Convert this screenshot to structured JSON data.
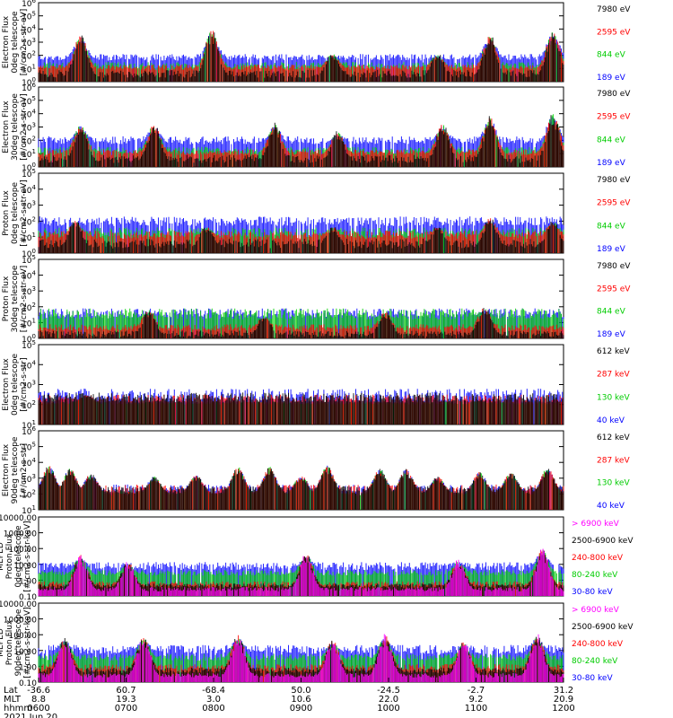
{
  "chart_data": [
    {
      "type": "line",
      "panel": "ted-electron-0deg",
      "ylabel": [
        "TED",
        "Electron Flux",
        "0deg telescope",
        "[#/cm2-s-str-eV]"
      ],
      "yscale": "log",
      "ylim": [
        1,
        1000000
      ],
      "yticks": [
        "10^0",
        "10^1",
        "10^2",
        "10^3",
        "10^4",
        "10^5",
        "10^6"
      ],
      "series": [
        {
          "name": "7980 eV",
          "color": "#000000",
          "level": [
            0.3,
            0.9
          ]
        },
        {
          "name": "2595 eV",
          "color": "#ff0000",
          "level": [
            0.9,
            1.3
          ]
        },
        {
          "name": "844 eV",
          "color": "#00cc00",
          "level": [
            1.0,
            1.5
          ]
        },
        {
          "name": "189 eV",
          "color": "#0000ff",
          "level": [
            1.6,
            2.1
          ]
        }
      ],
      "peaks": [
        [
          0.08,
          0.6,
          4.9
        ],
        [
          0.33,
          0.6,
          5.3
        ],
        [
          0.56,
          0.5,
          3.3
        ],
        [
          0.76,
          0.6,
          3.5
        ],
        [
          0.86,
          0.5,
          4.7
        ],
        [
          0.98,
          0.5,
          5.0
        ]
      ]
    },
    {
      "type": "line",
      "panel": "ted-electron-30deg",
      "ylabel": [
        "TED",
        "Electron Flux",
        "30deg telescope",
        "[#/cm2-s-str-eV]"
      ],
      "yscale": "log",
      "ylim": [
        1,
        1000000
      ],
      "yticks": [
        "10^0",
        "10^1",
        "10^2",
        "10^3",
        "10^4",
        "10^5",
        "10^6"
      ],
      "series": [
        {
          "name": "7980 eV",
          "color": "#000000",
          "level": [
            0.3,
            0.9
          ]
        },
        {
          "name": "2595 eV",
          "color": "#ff0000",
          "level": [
            0.9,
            1.3
          ]
        },
        {
          "name": "844 eV",
          "color": "#00cc00",
          "level": [
            1.0,
            1.5
          ]
        },
        {
          "name": "189 eV",
          "color": "#0000ff",
          "level": [
            1.7,
            2.3
          ]
        }
      ],
      "peaks": [
        [
          0.08,
          0.7,
          4.8
        ],
        [
          0.22,
          0.5,
          4.4
        ],
        [
          0.45,
          0.8,
          5.0
        ],
        [
          0.57,
          0.6,
          4.0
        ],
        [
          0.77,
          0.6,
          4.6
        ],
        [
          0.86,
          0.5,
          4.9
        ],
        [
          0.98,
          0.5,
          5.2
        ]
      ]
    },
    {
      "type": "line",
      "panel": "ted-proton-0deg",
      "ylabel": [
        "TED",
        "Proton Flux",
        "0deg telescope",
        "[#/cm2-s-str-eV]"
      ],
      "yscale": "log",
      "ylim": [
        1,
        100000
      ],
      "yticks": [
        "10^0",
        "10^1",
        "10^2",
        "10^3",
        "10^4",
        "10^5"
      ],
      "series": [
        {
          "name": "7980 eV",
          "color": "#000000",
          "level": [
            0.3,
            0.9
          ]
        },
        {
          "name": "2595 eV",
          "color": "#ff0000",
          "level": [
            0.9,
            1.4
          ]
        },
        {
          "name": "844 eV",
          "color": "#00cc00",
          "level": [
            1.0,
            1.6
          ]
        },
        {
          "name": "189 eV",
          "color": "#0000ff",
          "level": [
            1.7,
            2.3
          ]
        }
      ],
      "peaks": [
        [
          0.07,
          0.5,
          3.2
        ],
        [
          0.32,
          0.6,
          3.0
        ],
        [
          0.56,
          0.6,
          3.0
        ],
        [
          0.76,
          0.6,
          3.0
        ],
        [
          0.86,
          0.5,
          3.4
        ],
        [
          0.98,
          0.5,
          3.2
        ]
      ]
    },
    {
      "type": "line",
      "panel": "ted-proton-30deg",
      "ylabel": [
        "TED",
        "Proton Flux",
        "30deg telescope",
        "[#/cm2-s-str-eV]"
      ],
      "yscale": "log",
      "ylim": [
        1,
        100000
      ],
      "yticks": [
        "10^0",
        "10^1",
        "10^2",
        "10^3",
        "10^4",
        "10^5"
      ],
      "series": [
        {
          "name": "7980 eV",
          "color": "#000000",
          "level": [
            0.1,
            0.5
          ]
        },
        {
          "name": "2595 eV",
          "color": "#ff0000",
          "level": [
            0.5,
            0.9
          ]
        },
        {
          "name": "844 eV",
          "color": "#00cc00",
          "level": [
            1.2,
            1.9
          ]
        },
        {
          "name": "189 eV",
          "color": "#0000ff",
          "level": [
            1.3,
            1.9
          ]
        }
      ],
      "peaks": [
        [
          0.21,
          0.6,
          3.1
        ],
        [
          0.43,
          0.7,
          2.9
        ],
        [
          0.66,
          0.6,
          3.0
        ],
        [
          0.85,
          0.6,
          3.3
        ]
      ]
    },
    {
      "type": "line",
      "panel": "meped-electron-0deg",
      "ylabel": [
        "MEPED",
        "Electron Flux",
        "0deg telescope",
        "[#/cm2-s-str]"
      ],
      "yscale": "log",
      "ylim": [
        10,
        100000
      ],
      "yticks": [
        "10^1",
        "10^2",
        "10^3",
        "10^4",
        "10^5"
      ],
      "series": [
        {
          "name": "612 keV",
          "color": "#000000",
          "level": [
            2.1,
            2.6
          ]
        },
        {
          "name": "287 keV",
          "color": "#ff0000",
          "level": [
            2.1,
            2.5
          ]
        },
        {
          "name": "130 keV",
          "color": "#00cc00",
          "level": [
            2.0,
            2.15
          ]
        },
        {
          "name": "40 keV",
          "color": "#0000ff",
          "level": [
            2.1,
            2.8
          ]
        }
      ],
      "peaks": [
        [
          0.09,
          0.5,
          3.9
        ],
        [
          0.42,
          0.5,
          3.3
        ],
        [
          0.61,
          0.6,
          3.4
        ],
        [
          0.84,
          0.7,
          4.0
        ],
        [
          0.96,
          0.5,
          3.1
        ]
      ]
    },
    {
      "type": "line",
      "panel": "meped-electron-90deg",
      "ylabel": [
        "MEPED",
        "Electron Flux",
        "90deg telescope",
        "[#/cm2-s-str]"
      ],
      "yscale": "log",
      "ylim": [
        10,
        1000000
      ],
      "yticks": [
        "10^1",
        "10^2",
        "10^3",
        "10^4",
        "10^5",
        "10^6"
      ],
      "series": [
        {
          "name": "612 keV",
          "color": "#000000",
          "level": [
            2.0,
            2.5
          ]
        },
        {
          "name": "287 keV",
          "color": "#ff0000",
          "level": [
            2.0,
            2.6
          ]
        },
        {
          "name": "130 keV",
          "color": "#00cc00",
          "level": [
            1.9,
            2.2
          ]
        },
        {
          "name": "40 keV",
          "color": "#0000ff",
          "level": [
            2.0,
            2.6
          ]
        }
      ],
      "peaks": [
        [
          0.02,
          0.5,
          5.2
        ],
        [
          0.06,
          0.5,
          5.0
        ],
        [
          0.1,
          0.4,
          4.5
        ],
        [
          0.22,
          0.5,
          4.5
        ],
        [
          0.3,
          0.5,
          4.6
        ],
        [
          0.38,
          0.6,
          5.3
        ],
        [
          0.44,
          0.5,
          5.1
        ],
        [
          0.5,
          0.4,
          4.4
        ],
        [
          0.55,
          0.4,
          5.0
        ],
        [
          0.65,
          0.6,
          5.2
        ],
        [
          0.7,
          0.5,
          5.0
        ],
        [
          0.76,
          0.5,
          4.5
        ],
        [
          0.84,
          0.6,
          5.0
        ],
        [
          0.9,
          0.5,
          4.8
        ],
        [
          0.97,
          0.5,
          5.1
        ]
      ]
    },
    {
      "type": "line",
      "panel": "meped-proton-0deg",
      "ylabel": [
        "MEPED",
        "Proton Flux",
        "0deg telescope",
        "[#/cm2-s-str-keV]"
      ],
      "yscale": "log",
      "ylim": [
        0.01,
        100000
      ],
      "yticks": [
        "0.10",
        "1.00",
        "10.00",
        "100.00",
        "1000.00",
        "10000.00"
      ],
      "series": [
        {
          "name": "> 6900 keV",
          "color": "#ff00ff",
          "level": [
            -1.6,
            -1.2
          ]
        },
        {
          "name": "2500-6900 keV",
          "color": "#000000",
          "level": [
            -1.3,
            -0.9
          ]
        },
        {
          "name": "240-800 keV",
          "color": "#ff0000",
          "level": [
            -1.2,
            -0.7
          ]
        },
        {
          "name": "80-240 keV",
          "color": "#00cc00",
          "level": [
            -0.2,
            0.3
          ]
        },
        {
          "name": "30-80 keV",
          "color": "#0000ff",
          "level": [
            0.3,
            1.0
          ]
        }
      ],
      "peaks": [
        [
          0.08,
          0.5,
          2.4
        ],
        [
          0.17,
          0.6,
          2.0
        ],
        [
          0.51,
          0.5,
          2.6
        ],
        [
          0.8,
          0.5,
          2.0
        ],
        [
          0.96,
          0.4,
          2.8
        ]
      ]
    },
    {
      "type": "line",
      "panel": "meped-proton-90deg",
      "ylabel": [
        "MEPED",
        "Proton Flux",
        "90deg telescope",
        "[#/cm2-s-str-keV]"
      ],
      "yscale": "log",
      "ylim": [
        0.01,
        100000
      ],
      "yticks": [
        "0.10",
        "1.00",
        "10.00",
        "100.00",
        "1000.00",
        "10000.00"
      ],
      "series": [
        {
          "name": "> 6900 keV",
          "color": "#ff00ff",
          "level": [
            -1.6,
            -1.2
          ]
        },
        {
          "name": "2500-6900 keV",
          "color": "#000000",
          "level": [
            -1.2,
            -0.7
          ]
        },
        {
          "name": "240-800 keV",
          "color": "#ff0000",
          "level": [
            -1.0,
            -0.4
          ]
        },
        {
          "name": "80-240 keV",
          "color": "#00cc00",
          "level": [
            -0.1,
            0.5
          ]
        },
        {
          "name": "30-80 keV",
          "color": "#0000ff",
          "level": [
            0.5,
            1.3
          ]
        }
      ],
      "peaks": [
        [
          0.05,
          0.6,
          3.0
        ],
        [
          0.2,
          0.6,
          3.0
        ],
        [
          0.38,
          0.6,
          3.2
        ],
        [
          0.56,
          0.6,
          2.7
        ],
        [
          0.66,
          0.5,
          3.0
        ],
        [
          0.81,
          0.6,
          2.6
        ],
        [
          0.95,
          0.5,
          3.0
        ]
      ]
    }
  ],
  "x_axis": {
    "row_labels": [
      "Lat",
      "MLT",
      "hhmm",
      "2021 Jun 20"
    ],
    "ticks": [
      {
        "lat": "-36.6",
        "mlt": "8.8",
        "hhmm": "0600"
      },
      {
        "lat": "60.7",
        "mlt": "19.3",
        "hhmm": "0700"
      },
      {
        "lat": "-68.4",
        "mlt": "3.0",
        "hhmm": "0800"
      },
      {
        "lat": "50.0",
        "mlt": "10.6",
        "hhmm": "0900"
      },
      {
        "lat": "-24.5",
        "mlt": "22.0",
        "hhmm": "1000"
      },
      {
        "lat": "-2.7",
        "mlt": "9.2",
        "hhmm": "1100"
      },
      {
        "lat": "31.2",
        "mlt": "20.9",
        "hhmm": "1200"
      }
    ]
  },
  "overlay": {
    "label_lines": [
      "TED",
      "Electron Flux",
      "0deg telescope",
      "[#/cm2-s-str-eV]",
      "Proton Flux",
      "30deg telescope",
      "MEPED",
      "90deg telescope",
      "[#/cm2-s-str]",
      "[#/cm2-s-str-keV]"
    ]
  }
}
